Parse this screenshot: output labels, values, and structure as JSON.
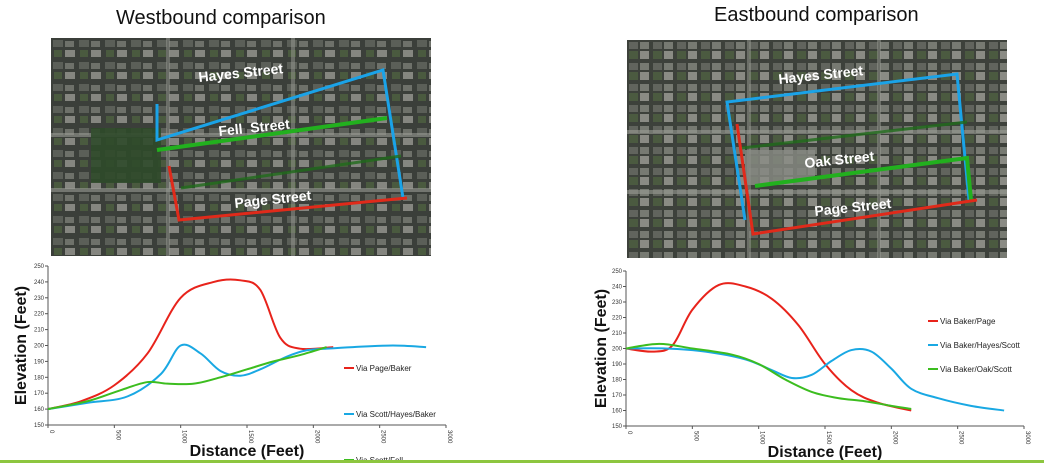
{
  "panels": [
    {
      "title": "Westbound comparison",
      "map": {
        "streets": [
          "Hayes Street",
          "Fell  Street",
          "Page Street"
        ],
        "route_colors": {
          "blue": "#1aa3e8",
          "green": "#22b01e",
          "red": "#e02a1a"
        }
      }
    },
    {
      "title": "Eastbound comparison",
      "map": {
        "streets": [
          "Hayes Street",
          "Oak Street",
          "Page Street"
        ],
        "route_colors": {
          "blue": "#1aa3e8",
          "green": "#22b01e",
          "red": "#e02a1a"
        }
      }
    }
  ],
  "chart_data": [
    {
      "type": "line",
      "title": "",
      "xlabel": "Distance (Feet)",
      "ylabel": "Elevation (Feet)",
      "xlim": [
        0,
        3000
      ],
      "ylim": [
        150,
        250
      ],
      "xticks": [
        "0",
        "500",
        "1000",
        "1500",
        "2000",
        "2500",
        "3000"
      ],
      "yticks": [
        "150",
        "160",
        "170",
        "180",
        "190",
        "200",
        "210",
        "220",
        "230",
        "240",
        "250"
      ],
      "grid": false,
      "legend_position": "right",
      "series": [
        {
          "name": "Via Page/Baker",
          "color": "#e8231b",
          "points": [
            [
              0,
              160
            ],
            [
              250,
              165
            ],
            [
              500,
              175
            ],
            [
              750,
              195
            ],
            [
              1000,
              230
            ],
            [
              1250,
              240
            ],
            [
              1450,
              241
            ],
            [
              1600,
              235
            ],
            [
              1750,
              205
            ],
            [
              1900,
              198
            ],
            [
              2150,
              199
            ]
          ]
        },
        {
          "name": "Via Scott/Hayes/Baker",
          "color": "#19a8e3",
          "points": [
            [
              0,
              160
            ],
            [
              300,
              164
            ],
            [
              600,
              168
            ],
            [
              850,
              182
            ],
            [
              1000,
              200
            ],
            [
              1150,
              195
            ],
            [
              1300,
              184
            ],
            [
              1450,
              181
            ],
            [
              1600,
              185
            ],
            [
              1800,
              193
            ],
            [
              1950,
              197
            ],
            [
              2100,
              198
            ],
            [
              2300,
              199
            ],
            [
              2600,
              200
            ],
            [
              2850,
              199
            ]
          ]
        },
        {
          "name": "Via Scott/Fell",
          "color": "#3cbd1f",
          "points": [
            [
              0,
              160
            ],
            [
              300,
              165
            ],
            [
              550,
              172
            ],
            [
              750,
              177
            ],
            [
              900,
              176
            ],
            [
              1100,
              176
            ],
            [
              1300,
              180
            ],
            [
              1500,
              185
            ],
            [
              1700,
              190
            ],
            [
              1900,
              194
            ],
            [
              2100,
              199
            ]
          ]
        }
      ]
    },
    {
      "type": "line",
      "title": "",
      "xlabel": "Distance (Feet)",
      "ylabel": "Elevation (Feet)",
      "xlim": [
        0,
        3000
      ],
      "ylim": [
        150,
        250
      ],
      "xticks": [
        "0",
        "500",
        "1000",
        "1500",
        "2000",
        "2500",
        "3000"
      ],
      "yticks": [
        "150",
        "160",
        "170",
        "180",
        "190",
        "200",
        "210",
        "220",
        "230",
        "240",
        "250"
      ],
      "grid": false,
      "legend_position": "right",
      "series": [
        {
          "name": "Via Baker/Page",
          "color": "#e8231b",
          "points": [
            [
              0,
              200
            ],
            [
              200,
              198
            ],
            [
              350,
              202
            ],
            [
              500,
              225
            ],
            [
              700,
              241
            ],
            [
              900,
              240
            ],
            [
              1100,
              232
            ],
            [
              1300,
              215
            ],
            [
              1500,
              190
            ],
            [
              1700,
              173
            ],
            [
              1900,
              165
            ],
            [
              2150,
              160
            ]
          ]
        },
        {
          "name": "Via Baker/Hayes/Scott",
          "color": "#19a8e3",
          "points": [
            [
              0,
              200
            ],
            [
              300,
              200
            ],
            [
              600,
              198
            ],
            [
              900,
              193
            ],
            [
              1100,
              186
            ],
            [
              1250,
              181
            ],
            [
              1400,
              183
            ],
            [
              1550,
              192
            ],
            [
              1700,
              199
            ],
            [
              1850,
              198
            ],
            [
              2000,
              187
            ],
            [
              2150,
              174
            ],
            [
              2350,
              168
            ],
            [
              2600,
              163
            ],
            [
              2850,
              160
            ]
          ]
        },
        {
          "name": "Via Baker/Oak/Scott",
          "color": "#3cbd1f",
          "points": [
            [
              0,
              200
            ],
            [
              250,
              203
            ],
            [
              500,
              200
            ],
            [
              800,
              196
            ],
            [
              1000,
              190
            ],
            [
              1200,
              180
            ],
            [
              1400,
              172
            ],
            [
              1600,
              168
            ],
            [
              1800,
              166
            ],
            [
              2000,
              163
            ],
            [
              2150,
              161
            ]
          ]
        }
      ]
    }
  ]
}
